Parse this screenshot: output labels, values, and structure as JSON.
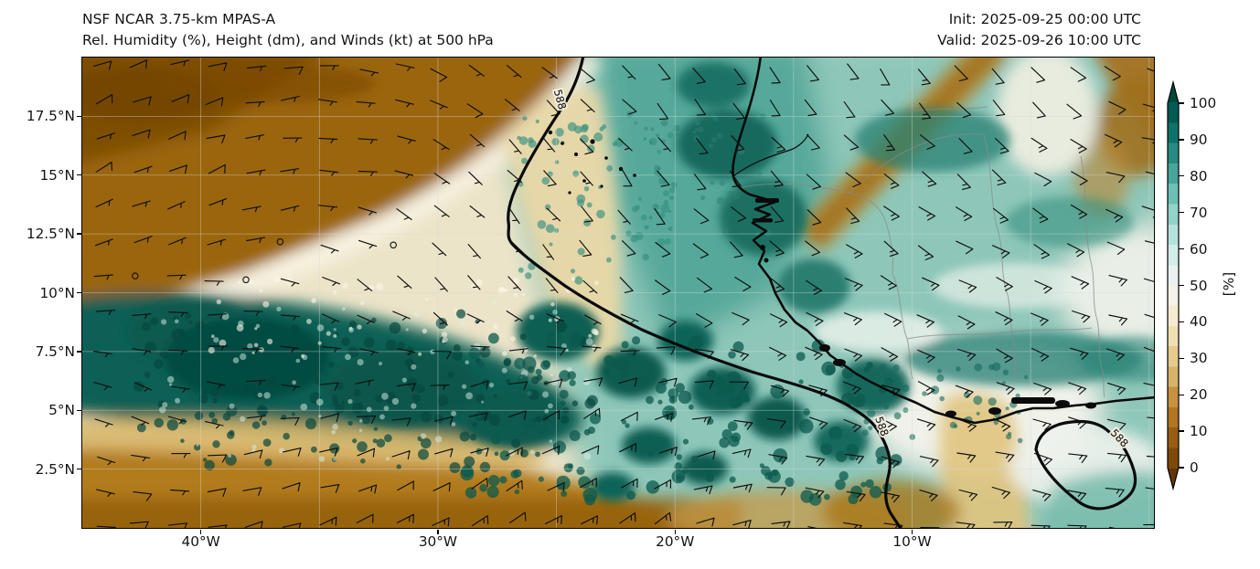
{
  "header": {
    "model": "NSF NCAR 3.75-km MPAS-A",
    "subtitle": "Rel. Humidity (%), Height (dm), and Winds (kt) at 500 hPa",
    "init": "Init: 2025-09-25 00:00 UTC",
    "valid": "Valid: 2025-09-26 10:00 UTC"
  },
  "axes": {
    "x_ticks": [
      {
        "label": "40°W",
        "lon": -40
      },
      {
        "label": "30°W",
        "lon": -30
      },
      {
        "label": "20°W",
        "lon": -20
      },
      {
        "label": "10°W",
        "lon": -10
      }
    ],
    "y_ticks": [
      {
        "label": "2.5°N",
        "lat": 2.5
      },
      {
        "label": "5°N",
        "lat": 5
      },
      {
        "label": "7.5°N",
        "lat": 7.5
      },
      {
        "label": "10°N",
        "lat": 10
      },
      {
        "label": "12.5°N",
        "lat": 12.5
      },
      {
        "label": "15°N",
        "lat": 15
      },
      {
        "label": "17.5°N",
        "lat": 17.5
      }
    ],
    "lon_range": [
      -45,
      0.2
    ],
    "lat_range": [
      0,
      20
    ]
  },
  "colorbar": {
    "label": "[%]",
    "ticks": [
      0,
      10,
      20,
      30,
      40,
      50,
      60,
      70,
      80,
      90,
      100
    ],
    "extend": "both",
    "colormap_name": "BrBG",
    "colormap_stops": [
      "#543005",
      "#8c510a",
      "#bf812d",
      "#dfc27d",
      "#f6e8c3",
      "#f5f5f5",
      "#c7eae5",
      "#80cdc1",
      "#35978f",
      "#01665e",
      "#003c30"
    ]
  },
  "contours": {
    "field": "Geopotential height",
    "units": "dm",
    "level": 588,
    "labels": [
      "588",
      "588",
      "588"
    ]
  },
  "chart_data": {
    "type": "heatmap",
    "title": "Rel. Humidity (%), Height (dm), and Winds (kt) at 500 hPa",
    "model": "NSF NCAR 3.75-km MPAS-A",
    "init_time": "2025-09-25 00:00 UTC",
    "valid_time": "2025-09-26 10:00 UTC",
    "field": "relative humidity",
    "units": "%",
    "value_range": [
      0,
      100
    ],
    "level": "500 hPa",
    "x_axis": {
      "type": "longitude",
      "ticks": [
        "40°W",
        "30°W",
        "20°W",
        "10°W"
      ],
      "range_deg": [
        -45,
        0.2
      ]
    },
    "y_axis": {
      "type": "latitude",
      "ticks": [
        "2.5°N",
        "5°N",
        "7.5°N",
        "10°N",
        "12.5°N",
        "15°N",
        "17.5°N"
      ],
      "range_deg": [
        0,
        20
      ]
    },
    "overlays": [
      {
        "name": "geopotential height contours",
        "units": "dm",
        "labeled_level": 588
      },
      {
        "name": "wind barbs",
        "units": "kt",
        "typical_speeds_kt": [
          5,
          10,
          15
        ]
      },
      {
        "name": "coastlines and country borders"
      }
    ],
    "notable_features": [
      "large very dry region (RH < 25%, brown) over the northwest quadrant of the domain",
      "very moist band (RH > 90%, dark teal) near 7.5-11°N west of 25°W",
      "dry band (RH 20-40%) along 0-5°N in the southwest",
      "broad moist air mass (RH 60-90%, teal) over West Africa east of 20°W",
      "dry streak northwest of the Senegal coast and a dry patch in the northeast corner",
      "588 dm height contour sweeping from 25°W/20°N southeastward to the bottom edge near 10°W, with a closed 588 dm contour near 4°W 2°N"
    ]
  }
}
